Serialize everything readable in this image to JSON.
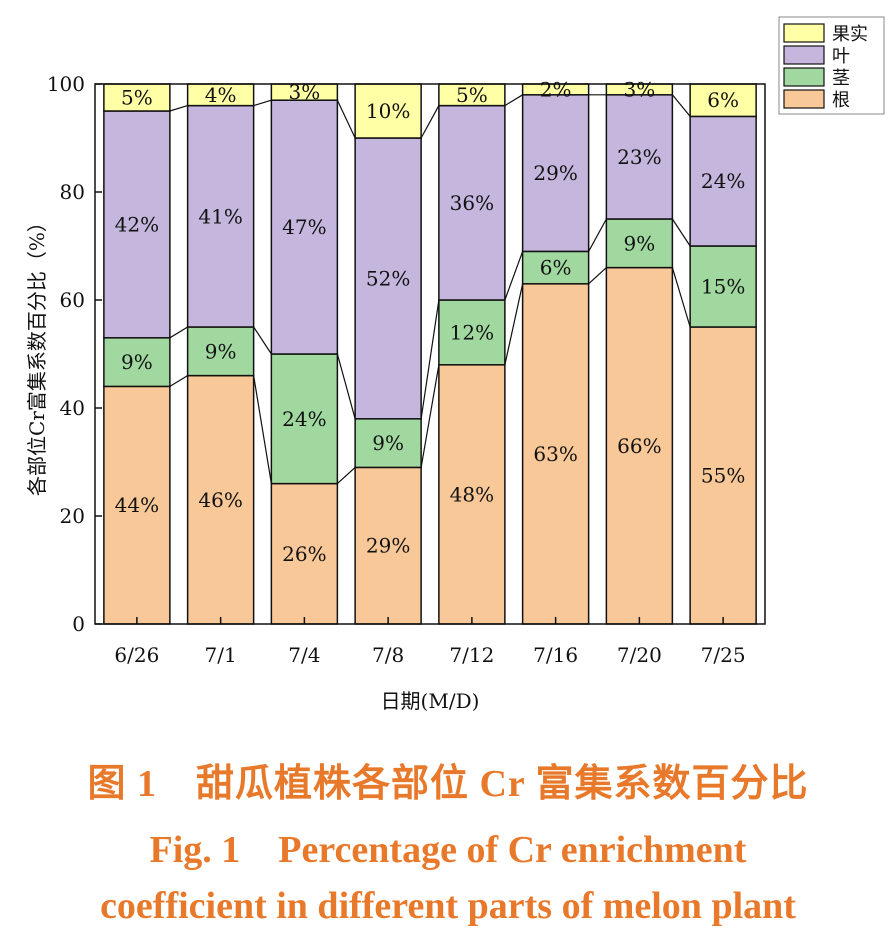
{
  "chart_data": {
    "type": "bar",
    "stacked": true,
    "categories": [
      "6/26",
      "7/1",
      "7/4",
      "7/8",
      "7/12",
      "7/16",
      "7/20",
      "7/25"
    ],
    "series": [
      {
        "name": "根",
        "color": "#F9C898",
        "values": [
          44,
          46,
          26,
          29,
          48,
          63,
          66,
          55
        ],
        "labels": [
          "44%",
          "46%",
          "26%",
          "29%",
          "48%",
          "63%",
          "66%",
          "55%"
        ]
      },
      {
        "name": "茎",
        "color": "#A0D8A0",
        "values": [
          9,
          9,
          24,
          9,
          12,
          6,
          9,
          15
        ],
        "labels": [
          "9%",
          "9%",
          "24%",
          "9%",
          "12%",
          "6%",
          "9%",
          "15%"
        ]
      },
      {
        "name": "叶",
        "color": "#C4B6DD",
        "values": [
          42,
          41,
          47,
          52,
          36,
          29,
          23,
          24
        ],
        "labels": [
          "42%",
          "41%",
          "47%",
          "52%",
          "36%",
          "29%",
          "23%",
          "24%"
        ]
      },
      {
        "name": "果实",
        "color": "#FFFFA6",
        "values": [
          5,
          4,
          3,
          10,
          5,
          2,
          3,
          6
        ],
        "labels": [
          "5%",
          "4%",
          "3%",
          "10%",
          "5%",
          "2%",
          "3%",
          "6%"
        ]
      }
    ],
    "xlabel": "日期(M/D)",
    "ylabel": "各部位Cr富集系数百分比（%）",
    "ylim": [
      0,
      100
    ],
    "yticks": [
      "0",
      "20",
      "40",
      "60",
      "80",
      "100"
    ],
    "legend_order": [
      "果实",
      "叶",
      "茎",
      "根"
    ],
    "legend_position": "top-right",
    "grid": false
  },
  "caption": {
    "cn": "图 1　甜瓜植株各部位 Cr 富集系数百分比",
    "en1": "Fig. 1　Percentage of Cr enrichment",
    "en2": "coefficient in different parts of melon plant"
  }
}
